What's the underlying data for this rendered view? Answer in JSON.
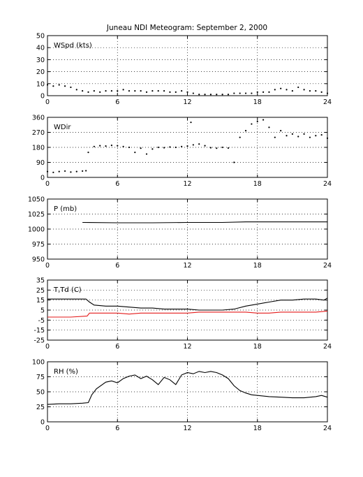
{
  "title": "Juneau NDI Meteogram: September  2, 2000",
  "chart_data": [
    {
      "type": "scatter",
      "label": "WSpd (kts)",
      "xlim": [
        0,
        24
      ],
      "ylim": [
        0,
        50
      ],
      "xticks": [
        "0",
        "6",
        "12",
        "18",
        "24"
      ],
      "yticks": [
        "0",
        "10",
        "20",
        "30",
        "40",
        "50"
      ],
      "grid": true,
      "series": [
        {
          "color": "#000000",
          "marker": "dot",
          "points": [
            [
              0,
              9
            ],
            [
              0.5,
              8
            ],
            [
              1,
              9
            ],
            [
              1.5,
              8
            ],
            [
              2,
              7
            ],
            [
              2.5,
              5
            ],
            [
              3,
              4
            ],
            [
              3.5,
              3
            ],
            [
              4,
              4
            ],
            [
              4.5,
              3
            ],
            [
              5,
              4
            ],
            [
              5.5,
              4
            ],
            [
              6,
              4
            ],
            [
              6.5,
              5
            ],
            [
              7,
              4
            ],
            [
              7.5,
              4
            ],
            [
              8,
              4
            ],
            [
              8.5,
              3
            ],
            [
              9,
              4
            ],
            [
              9.5,
              4
            ],
            [
              10,
              4
            ],
            [
              10.5,
              3
            ],
            [
              11,
              3
            ],
            [
              11.5,
              4
            ],
            [
              12,
              3
            ],
            [
              12.5,
              2
            ],
            [
              13,
              1
            ],
            [
              13.5,
              1
            ],
            [
              14,
              1
            ],
            [
              14.5,
              1
            ],
            [
              15,
              1
            ],
            [
              15.5,
              1
            ],
            [
              16,
              2
            ],
            [
              16.5,
              2
            ],
            [
              17,
              2
            ],
            [
              17.5,
              2
            ],
            [
              18,
              3
            ],
            [
              18.5,
              3
            ],
            [
              19,
              3
            ],
            [
              19.5,
              5
            ],
            [
              20,
              6
            ],
            [
              20.5,
              5
            ],
            [
              21,
              4
            ],
            [
              21.5,
              7
            ],
            [
              22,
              5
            ],
            [
              22.5,
              4
            ],
            [
              23,
              4
            ],
            [
              23.5,
              3
            ],
            [
              24,
              2
            ]
          ]
        }
      ]
    },
    {
      "type": "scatter",
      "label": "WDir",
      "xlim": [
        0,
        24
      ],
      "ylim": [
        0,
        360
      ],
      "xticks": [
        "0",
        "6",
        "12",
        "18",
        "24"
      ],
      "yticks": [
        "0",
        "90",
        "180",
        "270",
        "360"
      ],
      "grid": true,
      "series": [
        {
          "color": "#000000",
          "marker": "dot",
          "points": [
            [
              0,
              35
            ],
            [
              0.5,
              30
            ],
            [
              1,
              35
            ],
            [
              1.5,
              38
            ],
            [
              2,
              32
            ],
            [
              2.5,
              35
            ],
            [
              3,
              38
            ],
            [
              3.3,
              40
            ],
            [
              3.5,
              150
            ],
            [
              4,
              185
            ],
            [
              4.5,
              190
            ],
            [
              5,
              188
            ],
            [
              5.5,
              192
            ],
            [
              6,
              190
            ],
            [
              6.5,
              185
            ],
            [
              7,
              180
            ],
            [
              7.5,
              150
            ],
            [
              8,
              175
            ],
            [
              8.5,
              140
            ],
            [
              9,
              170
            ],
            [
              9.5,
              180
            ],
            [
              10,
              178
            ],
            [
              10.5,
              182
            ],
            [
              11,
              180
            ],
            [
              11.5,
              185
            ],
            [
              12,
              188
            ],
            [
              12.3,
              330
            ],
            [
              12.5,
              195
            ],
            [
              13,
              200
            ],
            [
              13.5,
              190
            ],
            [
              14,
              178
            ],
            [
              14.5,
              175
            ],
            [
              15,
              180
            ],
            [
              15.5,
              176
            ],
            [
              16,
              90
            ],
            [
              16.5,
              240
            ],
            [
              17,
              280
            ],
            [
              17.5,
              320
            ],
            [
              18,
              335
            ],
            [
              18.5,
              345
            ],
            [
              19,
              300
            ],
            [
              19.5,
              240
            ],
            [
              20,
              280
            ],
            [
              20.5,
              250
            ],
            [
              21,
              260
            ],
            [
              21.5,
              245
            ],
            [
              22,
              260
            ],
            [
              22.5,
              240
            ],
            [
              23,
              250
            ],
            [
              23.5,
              255
            ],
            [
              24,
              235
            ]
          ]
        }
      ]
    },
    {
      "type": "line",
      "label": "P (mb)",
      "xlim": [
        0,
        24
      ],
      "ylim": [
        950,
        1050
      ],
      "xticks": [
        "0",
        "6",
        "12",
        "18",
        "24"
      ],
      "yticks": [
        "950",
        "975",
        "1000",
        "1025",
        "1050"
      ],
      "grid": true,
      "series": [
        {
          "color": "#000000",
          "points": [
            [
              3,
              1011
            ],
            [
              6,
              1010.5
            ],
            [
              9,
              1010.5
            ],
            [
              12,
              1011
            ],
            [
              15,
              1011
            ],
            [
              17,
              1012
            ],
            [
              19,
              1012
            ],
            [
              21,
              1012
            ],
            [
              24,
              1012
            ]
          ]
        }
      ]
    },
    {
      "type": "line",
      "label": "T,Td (C)",
      "xlim": [
        0,
        24
      ],
      "ylim": [
        -25,
        35
      ],
      "xticks": [
        "0",
        "6",
        "12",
        "18",
        "24"
      ],
      "yticks": [
        "-25",
        "-15",
        "-5",
        "5",
        "15",
        "25",
        "35"
      ],
      "grid": true,
      "series": [
        {
          "color": "#000000",
          "points": [
            [
              0,
              16
            ],
            [
              2,
              16
            ],
            [
              3.3,
              16
            ],
            [
              3.6,
              13
            ],
            [
              4,
              10
            ],
            [
              5,
              9
            ],
            [
              6,
              9
            ],
            [
              7,
              8
            ],
            [
              8,
              7
            ],
            [
              9,
              7
            ],
            [
              10,
              6
            ],
            [
              11,
              6
            ],
            [
              12,
              6
            ],
            [
              13,
              5
            ],
            [
              14,
              5
            ],
            [
              15,
              5
            ],
            [
              16,
              6
            ],
            [
              17,
              9
            ],
            [
              18,
              11
            ],
            [
              19,
              13
            ],
            [
              20,
              15
            ],
            [
              21,
              15
            ],
            [
              22,
              16
            ],
            [
              23,
              16
            ],
            [
              23.7,
              15
            ],
            [
              24,
              17
            ]
          ]
        },
        {
          "color": "#e41a1a",
          "points": [
            [
              0,
              -2
            ],
            [
              2,
              -2
            ],
            [
              3.4,
              -1
            ],
            [
              3.6,
              2
            ],
            [
              5,
              2
            ],
            [
              6,
              2
            ],
            [
              7,
              1
            ],
            [
              8,
              2
            ],
            [
              9,
              2
            ],
            [
              10,
              2
            ],
            [
              11,
              2
            ],
            [
              12,
              2
            ],
            [
              13,
              3
            ],
            [
              14,
              3
            ],
            [
              15,
              3
            ],
            [
              16,
              3
            ],
            [
              17,
              3
            ],
            [
              18,
              2
            ],
            [
              19,
              2
            ],
            [
              20,
              3
            ],
            [
              21,
              3
            ],
            [
              22,
              3
            ],
            [
              23,
              3
            ],
            [
              24,
              4
            ]
          ]
        }
      ]
    },
    {
      "type": "line",
      "label": "RH (%)",
      "xlim": [
        0,
        24
      ],
      "ylim": [
        0,
        100
      ],
      "xticks": [
        "0",
        "6",
        "12",
        "18",
        "24"
      ],
      "yticks": [
        "0",
        "25",
        "50",
        "75",
        "100"
      ],
      "grid": true,
      "series": [
        {
          "color": "#000000",
          "points": [
            [
              0,
              29
            ],
            [
              1,
              30
            ],
            [
              2,
              30
            ],
            [
              3,
              31
            ],
            [
              3.5,
              32
            ],
            [
              3.8,
              45
            ],
            [
              4.2,
              55
            ],
            [
              5,
              66
            ],
            [
              5.5,
              68
            ],
            [
              6,
              65
            ],
            [
              6.5,
              72
            ],
            [
              7,
              76
            ],
            [
              7.5,
              78
            ],
            [
              8,
              72
            ],
            [
              8.5,
              76
            ],
            [
              9,
              70
            ],
            [
              9.5,
              62
            ],
            [
              10,
              74
            ],
            [
              10.5,
              70
            ],
            [
              11,
              62
            ],
            [
              11.5,
              78
            ],
            [
              12,
              82
            ],
            [
              12.5,
              80
            ],
            [
              13,
              84
            ],
            [
              13.5,
              82
            ],
            [
              14,
              84
            ],
            [
              14.5,
              82
            ],
            [
              15,
              78
            ],
            [
              15.5,
              72
            ],
            [
              16,
              60
            ],
            [
              16.5,
              52
            ],
            [
              17,
              48
            ],
            [
              17.5,
              45
            ],
            [
              18,
              44
            ],
            [
              19,
              42
            ],
            [
              20,
              41
            ],
            [
              21,
              40
            ],
            [
              22,
              40
            ],
            [
              23,
              42
            ],
            [
              23.5,
              44
            ],
            [
              24,
              41
            ]
          ]
        }
      ]
    }
  ]
}
